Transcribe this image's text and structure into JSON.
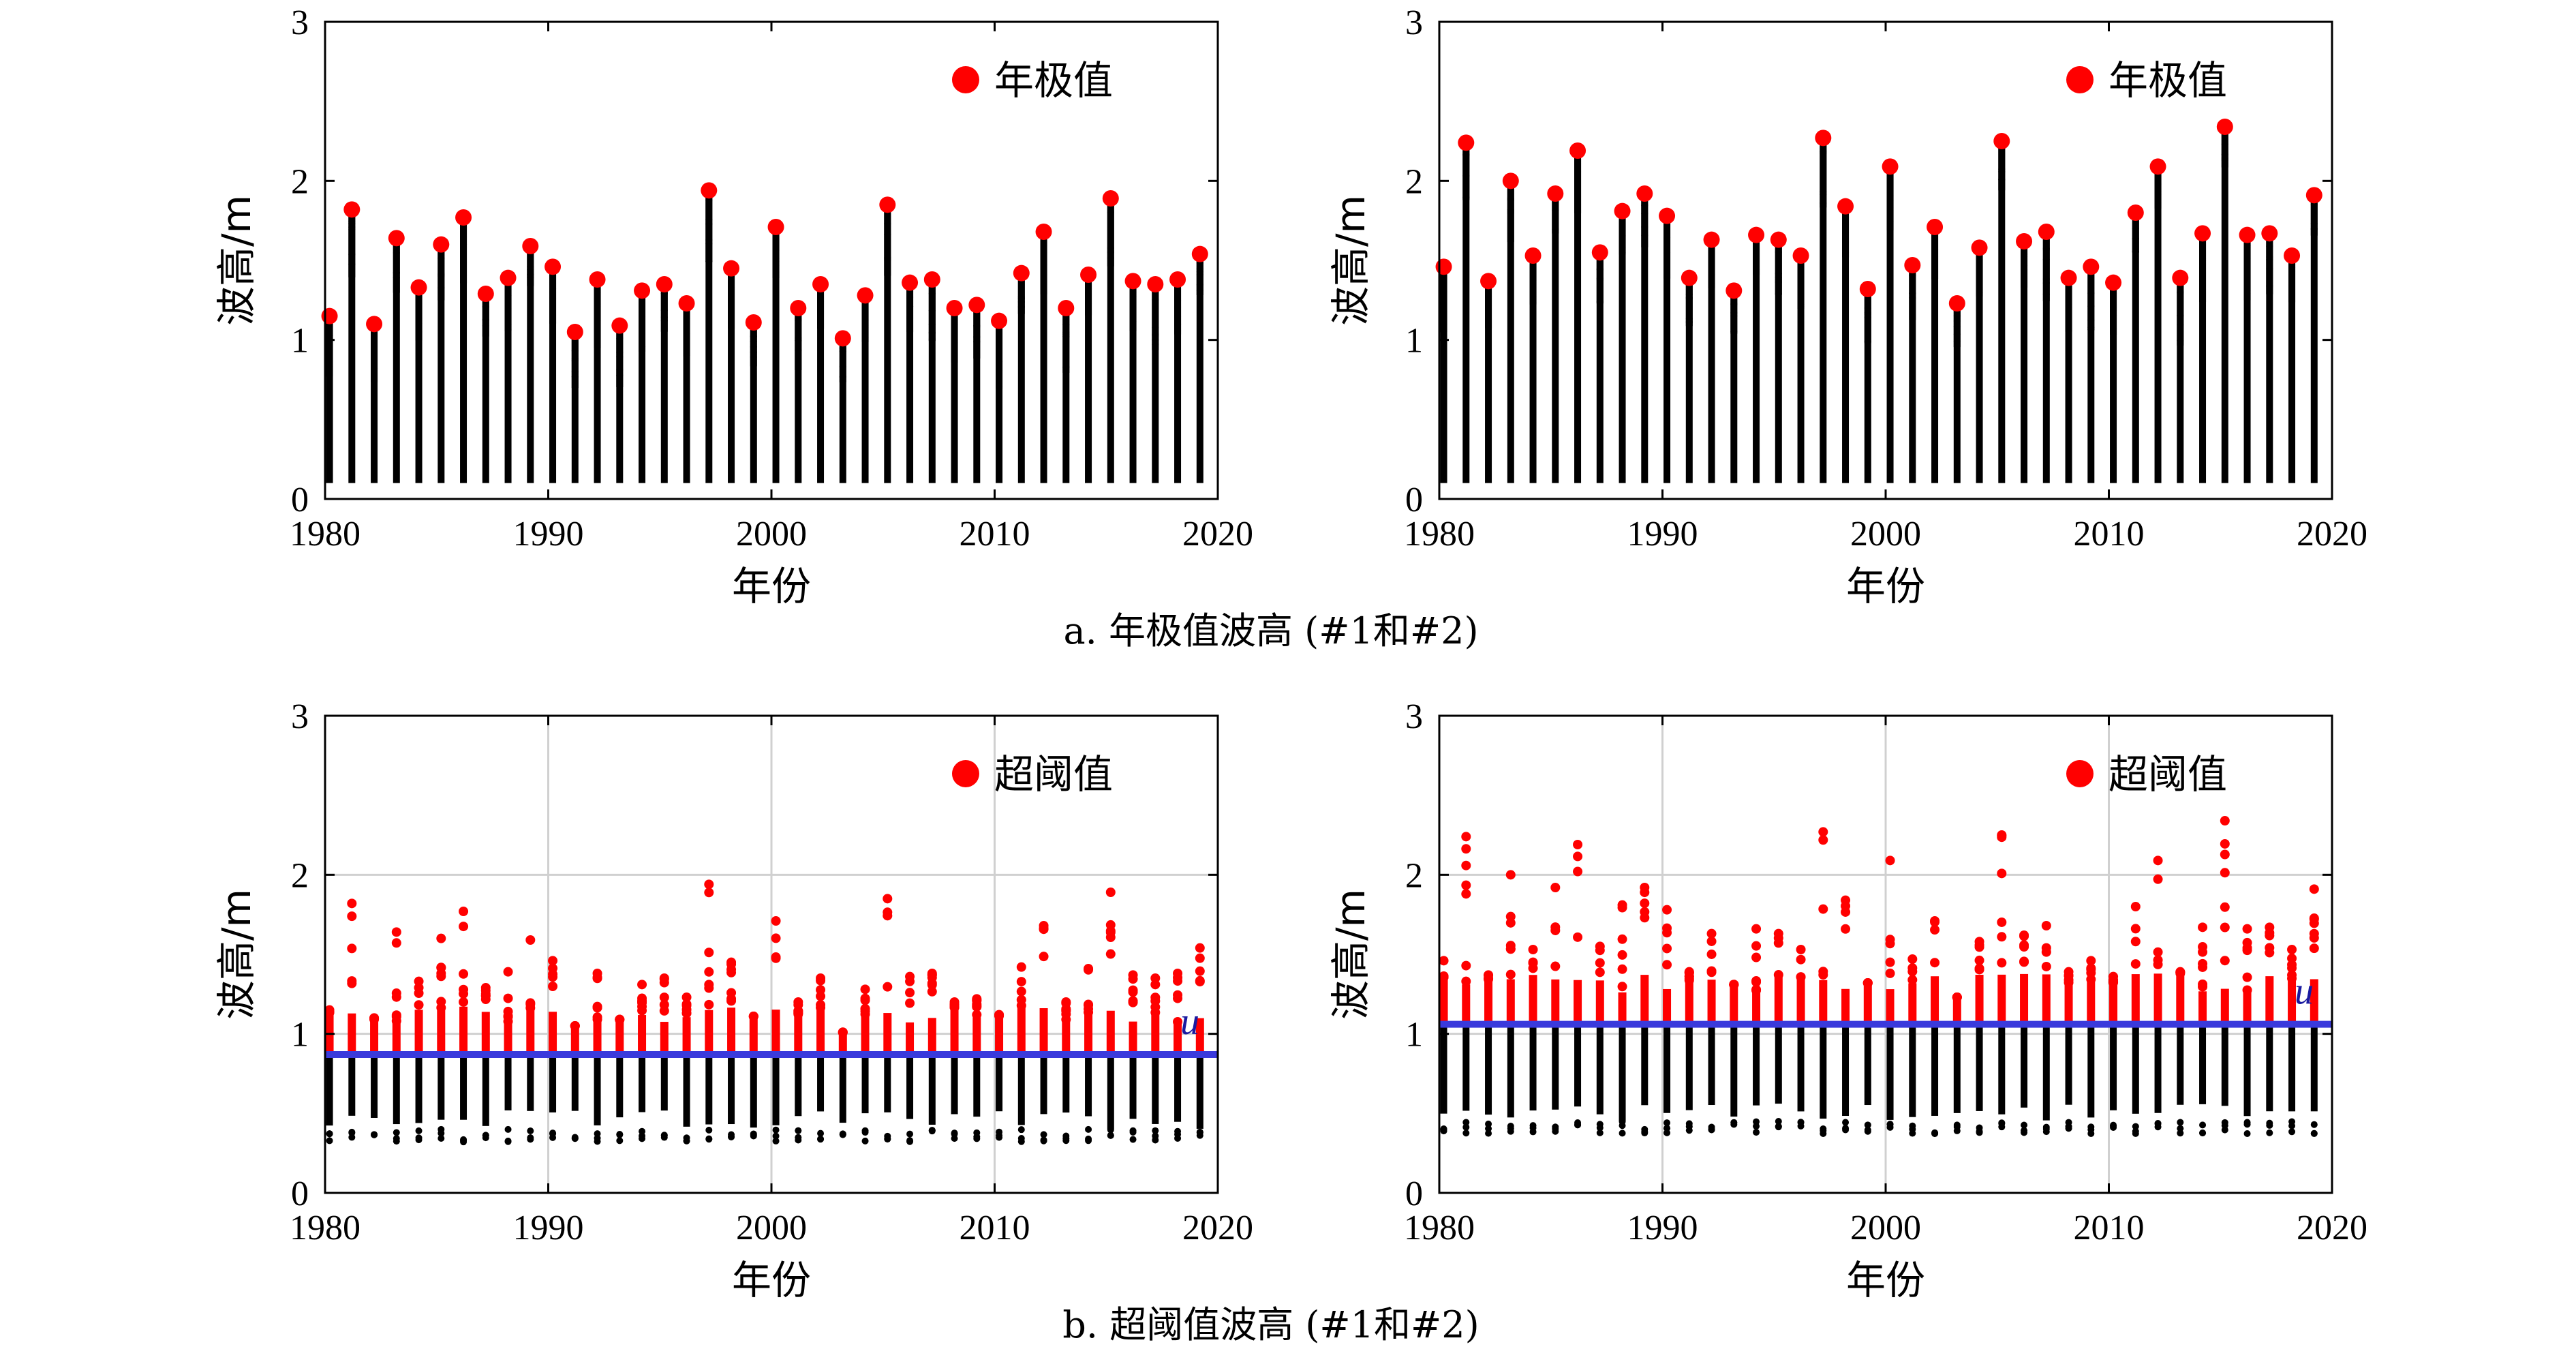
{
  "chart_data": [
    {
      "type": "scatter",
      "id": "a-left",
      "xlabel": "年份",
      "ylabel": "波高/m",
      "xlim": [
        1980,
        2020
      ],
      "ylim": [
        0,
        3
      ],
      "xticks": [
        "1980",
        "1990",
        "2000",
        "2010",
        "2020"
      ],
      "yticks": [
        "0",
        "1",
        "2",
        "3"
      ],
      "grid": false,
      "legend": {
        "label": "年极值",
        "placement": "top-right",
        "color": "#ff0000"
      },
      "series": [
        {
          "name": "年极值",
          "color": "#ff0000",
          "x": [
            1980,
            1981,
            1982,
            1983,
            1984,
            1985,
            1986,
            1987,
            1988,
            1989,
            1990,
            1991,
            1992,
            1993,
            1994,
            1995,
            1996,
            1997,
            1998,
            1999,
            2000,
            2001,
            2002,
            2003,
            2004,
            2005,
            2006,
            2007,
            2008,
            2009,
            2010,
            2011,
            2012,
            2013,
            2014,
            2015,
            2016,
            2017,
            2018,
            2019
          ],
          "y": [
            1.15,
            1.82,
            1.1,
            1.64,
            1.33,
            1.6,
            1.77,
            1.29,
            1.39,
            1.59,
            1.46,
            1.05,
            1.38,
            1.09,
            1.31,
            1.35,
            1.23,
            1.94,
            1.45,
            1.11,
            1.71,
            1.2,
            1.35,
            1.01,
            1.28,
            1.85,
            1.36,
            1.38,
            1.2,
            1.22,
            1.12,
            1.42,
            1.68,
            1.2,
            1.41,
            1.89,
            1.37,
            1.35,
            1.38,
            1.54
          ]
        }
      ],
      "background_series": {
        "color": "#000000",
        "lower": 0.1
      }
    },
    {
      "type": "scatter",
      "id": "a-right",
      "xlabel": "年份",
      "ylabel": "波高/m",
      "xlim": [
        1980,
        2020
      ],
      "ylim": [
        0,
        3
      ],
      "xticks": [
        "1980",
        "1990",
        "2000",
        "2010",
        "2020"
      ],
      "yticks": [
        "0",
        "1",
        "2",
        "3"
      ],
      "grid": false,
      "legend": {
        "label": "年极值",
        "placement": "top-right",
        "color": "#ff0000"
      },
      "series": [
        {
          "name": "年极值",
          "color": "#ff0000",
          "x": [
            1980,
            1981,
            1982,
            1983,
            1984,
            1985,
            1986,
            1987,
            1988,
            1989,
            1990,
            1991,
            1992,
            1993,
            1994,
            1995,
            1996,
            1997,
            1998,
            1999,
            2000,
            2001,
            2002,
            2003,
            2004,
            2005,
            2006,
            2007,
            2008,
            2009,
            2010,
            2011,
            2012,
            2013,
            2014,
            2015,
            2016,
            2017,
            2018,
            2019
          ],
          "y": [
            1.46,
            2.24,
            1.37,
            2.0,
            1.53,
            1.92,
            2.19,
            1.55,
            1.81,
            1.92,
            1.78,
            1.39,
            1.63,
            1.31,
            1.66,
            1.63,
            1.53,
            2.27,
            1.84,
            1.32,
            2.09,
            1.47,
            1.71,
            1.23,
            1.58,
            2.25,
            1.62,
            1.68,
            1.39,
            1.46,
            1.36,
            1.8,
            2.09,
            1.39,
            1.67,
            2.34,
            1.66,
            1.67,
            1.53,
            1.91
          ]
        }
      ],
      "background_series": {
        "color": "#000000",
        "lower": 0.1
      }
    },
    {
      "type": "scatter",
      "id": "b-left",
      "xlabel": "年份",
      "ylabel": "波高/m",
      "xlim": [
        1980,
        2020
      ],
      "ylim": [
        0,
        3
      ],
      "xticks": [
        "1980",
        "1990",
        "2000",
        "2010",
        "2020"
      ],
      "yticks": [
        "0",
        "1",
        "2",
        "3"
      ],
      "grid": true,
      "legend": {
        "label": "超阈值",
        "placement": "top-right",
        "color": "#ff0000"
      },
      "threshold": {
        "value": 0.87,
        "label": "u",
        "color": "#3a3adc"
      },
      "series": [
        {
          "name": "超阈值",
          "color": "#ff0000",
          "x": [
            1980,
            1981,
            1982,
            1983,
            1984,
            1985,
            1986,
            1987,
            1988,
            1989,
            1990,
            1991,
            1992,
            1993,
            1994,
            1995,
            1996,
            1997,
            1998,
            1999,
            2000,
            2001,
            2002,
            2003,
            2004,
            2005,
            2006,
            2007,
            2008,
            2009,
            2010,
            2011,
            2012,
            2013,
            2014,
            2015,
            2016,
            2017,
            2018,
            2019
          ],
          "y": [
            1.15,
            1.82,
            1.1,
            1.64,
            1.33,
            1.6,
            1.77,
            1.29,
            1.39,
            1.59,
            1.46,
            1.05,
            1.38,
            1.09,
            1.31,
            1.35,
            1.23,
            1.94,
            1.45,
            1.11,
            1.71,
            1.2,
            1.35,
            1.01,
            1.28,
            1.85,
            1.36,
            1.38,
            1.2,
            1.22,
            1.12,
            1.42,
            1.68,
            1.2,
            1.41,
            1.89,
            1.37,
            1.35,
            1.38,
            1.54
          ]
        }
      ],
      "background_series": {
        "color": "#000000",
        "lower": 0.4
      }
    },
    {
      "type": "scatter",
      "id": "b-right",
      "xlabel": "年份",
      "ylabel": "波高/m",
      "xlim": [
        1980,
        2020
      ],
      "ylim": [
        0,
        3
      ],
      "xticks": [
        "1980",
        "1990",
        "2000",
        "2010",
        "2020"
      ],
      "yticks": [
        "0",
        "1",
        "2",
        "3"
      ],
      "grid": true,
      "legend": {
        "label": "超阈值",
        "placement": "top-right",
        "color": "#ff0000"
      },
      "threshold": {
        "value": 1.06,
        "label": "u",
        "color": "#3a3adc"
      },
      "series": [
        {
          "name": "超阈值",
          "color": "#ff0000",
          "x": [
            1980,
            1981,
            1982,
            1983,
            1984,
            1985,
            1986,
            1987,
            1988,
            1989,
            1990,
            1991,
            1992,
            1993,
            1994,
            1995,
            1996,
            1997,
            1998,
            1999,
            2000,
            2001,
            2002,
            2003,
            2004,
            2005,
            2006,
            2007,
            2008,
            2009,
            2010,
            2011,
            2012,
            2013,
            2014,
            2015,
            2016,
            2017,
            2018,
            2019
          ],
          "y": [
            1.46,
            2.24,
            1.37,
            2.0,
            1.53,
            1.92,
            2.19,
            1.55,
            1.81,
            1.92,
            1.78,
            1.39,
            1.63,
            1.31,
            1.66,
            1.63,
            1.53,
            2.27,
            1.84,
            1.32,
            2.09,
            1.47,
            1.71,
            1.23,
            1.58,
            2.25,
            1.62,
            1.68,
            1.39,
            1.46,
            1.36,
            1.8,
            2.09,
            1.39,
            1.67,
            2.34,
            1.66,
            1.67,
            1.53,
            1.91
          ]
        }
      ],
      "background_series": {
        "color": "#000000",
        "lower": 0.45
      }
    }
  ],
  "captions": {
    "a": "a. 年极值波高 (#1和#2)",
    "b": "b. 超阈值波高 (#1和#2)"
  }
}
